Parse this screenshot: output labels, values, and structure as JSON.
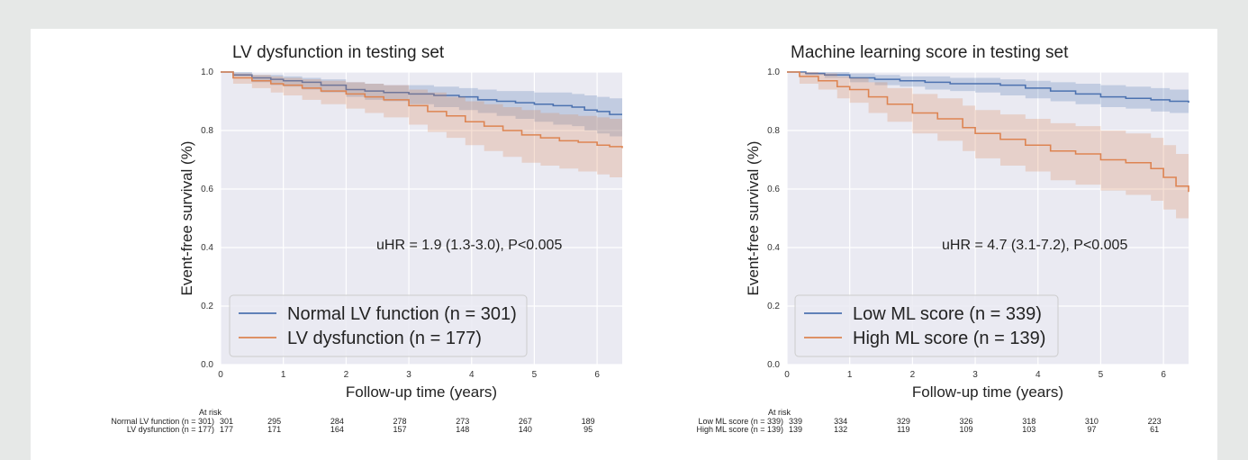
{
  "colors": {
    "page_bg": "#e6e8e7",
    "card_bg": "#ffffff",
    "plot_bg": "#eaeaf2",
    "grid": "#ffffff",
    "blue": "#4c72b0",
    "orange": "#dd8452"
  },
  "chart_data": [
    {
      "type": "line",
      "title": "LV dysfunction in testing set",
      "xlabel": "Follow-up time (years)",
      "ylabel": "Event-free survival (%)",
      "xlim": [
        0,
        6.4
      ],
      "ylim": [
        0,
        1.0
      ],
      "xticks": [
        "0",
        "1",
        "2",
        "3",
        "4",
        "5",
        "6"
      ],
      "yticks": [
        "0.0",
        "0.2",
        "0.4",
        "0.6",
        "0.8",
        "1.0"
      ],
      "grid": true,
      "legend_position": "lower-left",
      "annotation": "uHR = 1.9 (1.3-3.0), P<0.005",
      "series": [
        {
          "name": "Normal LV function (n = 301)",
          "color": "#4c72b0",
          "x": [
            0,
            0.2,
            0.5,
            0.8,
            1.0,
            1.3,
            1.6,
            2.0,
            2.3,
            2.6,
            3.0,
            3.4,
            3.8,
            4.1,
            4.4,
            4.7,
            5.0,
            5.3,
            5.6,
            5.8,
            6.0,
            6.2,
            6.4
          ],
          "y": [
            1.0,
            0.99,
            0.98,
            0.975,
            0.97,
            0.965,
            0.955,
            0.94,
            0.935,
            0.93,
            0.925,
            0.92,
            0.915,
            0.905,
            0.9,
            0.895,
            0.89,
            0.885,
            0.88,
            0.87,
            0.865,
            0.855,
            0.855
          ],
          "ci_lower": [
            1.0,
            0.985,
            0.965,
            0.955,
            0.95,
            0.94,
            0.93,
            0.915,
            0.905,
            0.9,
            0.89,
            0.88,
            0.87,
            0.86,
            0.85,
            0.84,
            0.83,
            0.82,
            0.815,
            0.8,
            0.79,
            0.78,
            0.775
          ],
          "ci_upper": [
            1.0,
            1.0,
            0.99,
            0.99,
            0.985,
            0.98,
            0.975,
            0.965,
            0.96,
            0.955,
            0.955,
            0.95,
            0.945,
            0.94,
            0.935,
            0.935,
            0.93,
            0.93,
            0.925,
            0.92,
            0.915,
            0.91,
            0.91
          ]
        },
        {
          "name": "LV dysfunction (n = 177)",
          "color": "#dd8452",
          "x": [
            0,
            0.2,
            0.5,
            0.8,
            1.0,
            1.3,
            1.6,
            2.0,
            2.3,
            2.6,
            3.0,
            3.3,
            3.6,
            3.9,
            4.2,
            4.5,
            4.8,
            5.1,
            5.4,
            5.7,
            6.0,
            6.2,
            6.4
          ],
          "y": [
            1.0,
            0.98,
            0.97,
            0.96,
            0.955,
            0.945,
            0.935,
            0.925,
            0.915,
            0.905,
            0.885,
            0.865,
            0.85,
            0.83,
            0.815,
            0.8,
            0.785,
            0.775,
            0.765,
            0.76,
            0.75,
            0.745,
            0.74
          ],
          "ci_lower": [
            1.0,
            0.96,
            0.945,
            0.93,
            0.92,
            0.905,
            0.89,
            0.875,
            0.86,
            0.845,
            0.82,
            0.795,
            0.775,
            0.75,
            0.73,
            0.71,
            0.69,
            0.68,
            0.67,
            0.66,
            0.65,
            0.64,
            0.63
          ],
          "ci_upper": [
            1.0,
            0.995,
            0.99,
            0.985,
            0.98,
            0.975,
            0.97,
            0.965,
            0.96,
            0.955,
            0.94,
            0.93,
            0.915,
            0.9,
            0.89,
            0.88,
            0.87,
            0.86,
            0.855,
            0.85,
            0.845,
            0.84,
            0.835
          ]
        }
      ],
      "at_risk": {
        "header": "At risk",
        "time_points": [
          0,
          1,
          2,
          3,
          4,
          5,
          6
        ],
        "rows": [
          {
            "label": "Normal LV function (n = 301)",
            "counts": [
              "301",
              "295",
              "284",
              "278",
              "273",
              "267",
              "189"
            ]
          },
          {
            "label": "LV dysfunction (n = 177)",
            "counts": [
              "177",
              "171",
              "164",
              "157",
              "148",
              "140",
              "95"
            ]
          }
        ]
      }
    },
    {
      "type": "line",
      "title": "Machine learning score in testing set",
      "xlabel": "Follow-up time (years)",
      "ylabel": "Event-free survival (%)",
      "xlim": [
        0,
        6.4
      ],
      "ylim": [
        0,
        1.0
      ],
      "xticks": [
        "0",
        "1",
        "2",
        "3",
        "4",
        "5",
        "6"
      ],
      "yticks": [
        "0.0",
        "0.2",
        "0.4",
        "0.6",
        "0.8",
        "1.0"
      ],
      "grid": true,
      "legend_position": "lower-left",
      "annotation": "uHR = 4.7 (3.1-7.2), P<0.005",
      "series": [
        {
          "name": "Low ML score (n = 339)",
          "color": "#4c72b0",
          "x": [
            0,
            0.3,
            0.6,
            1.0,
            1.4,
            1.8,
            2.2,
            2.6,
            3.0,
            3.4,
            3.8,
            4.2,
            4.6,
            5.0,
            5.4,
            5.8,
            6.1,
            6.4
          ],
          "y": [
            1.0,
            0.995,
            0.99,
            0.98,
            0.975,
            0.97,
            0.965,
            0.96,
            0.96,
            0.955,
            0.945,
            0.935,
            0.925,
            0.915,
            0.91,
            0.905,
            0.9,
            0.895
          ],
          "ci_lower": [
            1.0,
            0.99,
            0.98,
            0.965,
            0.955,
            0.95,
            0.94,
            0.935,
            0.93,
            0.92,
            0.91,
            0.9,
            0.89,
            0.88,
            0.875,
            0.865,
            0.86,
            0.855
          ],
          "ci_upper": [
            1.0,
            1.0,
            1.0,
            0.995,
            0.99,
            0.985,
            0.985,
            0.98,
            0.98,
            0.975,
            0.97,
            0.965,
            0.96,
            0.955,
            0.95,
            0.945,
            0.94,
            0.935
          ]
        },
        {
          "name": "High ML score (n = 139)",
          "color": "#dd8452",
          "x": [
            0,
            0.2,
            0.5,
            0.8,
            1.0,
            1.3,
            1.6,
            2.0,
            2.4,
            2.8,
            3.0,
            3.4,
            3.8,
            4.2,
            4.6,
            5.0,
            5.4,
            5.8,
            6.0,
            6.2,
            6.4
          ],
          "y": [
            1.0,
            0.985,
            0.97,
            0.95,
            0.94,
            0.915,
            0.89,
            0.86,
            0.84,
            0.81,
            0.79,
            0.77,
            0.75,
            0.73,
            0.72,
            0.7,
            0.69,
            0.67,
            0.64,
            0.61,
            0.59
          ],
          "ci_lower": [
            1.0,
            0.96,
            0.94,
            0.91,
            0.895,
            0.86,
            0.83,
            0.79,
            0.765,
            0.73,
            0.705,
            0.68,
            0.66,
            0.63,
            0.615,
            0.595,
            0.58,
            0.56,
            0.53,
            0.5,
            0.49
          ],
          "ci_upper": [
            1.0,
            1.0,
            0.995,
            0.985,
            0.98,
            0.965,
            0.945,
            0.925,
            0.91,
            0.885,
            0.87,
            0.855,
            0.84,
            0.825,
            0.815,
            0.8,
            0.79,
            0.775,
            0.75,
            0.72,
            0.7
          ]
        }
      ],
      "at_risk": {
        "header": "At risk",
        "time_points": [
          0,
          1,
          2,
          3,
          4,
          5,
          6
        ],
        "rows": [
          {
            "label": "Low ML score (n = 339)",
            "counts": [
              "339",
              "334",
              "329",
              "326",
              "318",
              "310",
              "223"
            ]
          },
          {
            "label": "High ML score (n = 139)",
            "counts": [
              "139",
              "132",
              "119",
              "109",
              "103",
              "97",
              "61"
            ]
          }
        ]
      }
    }
  ]
}
